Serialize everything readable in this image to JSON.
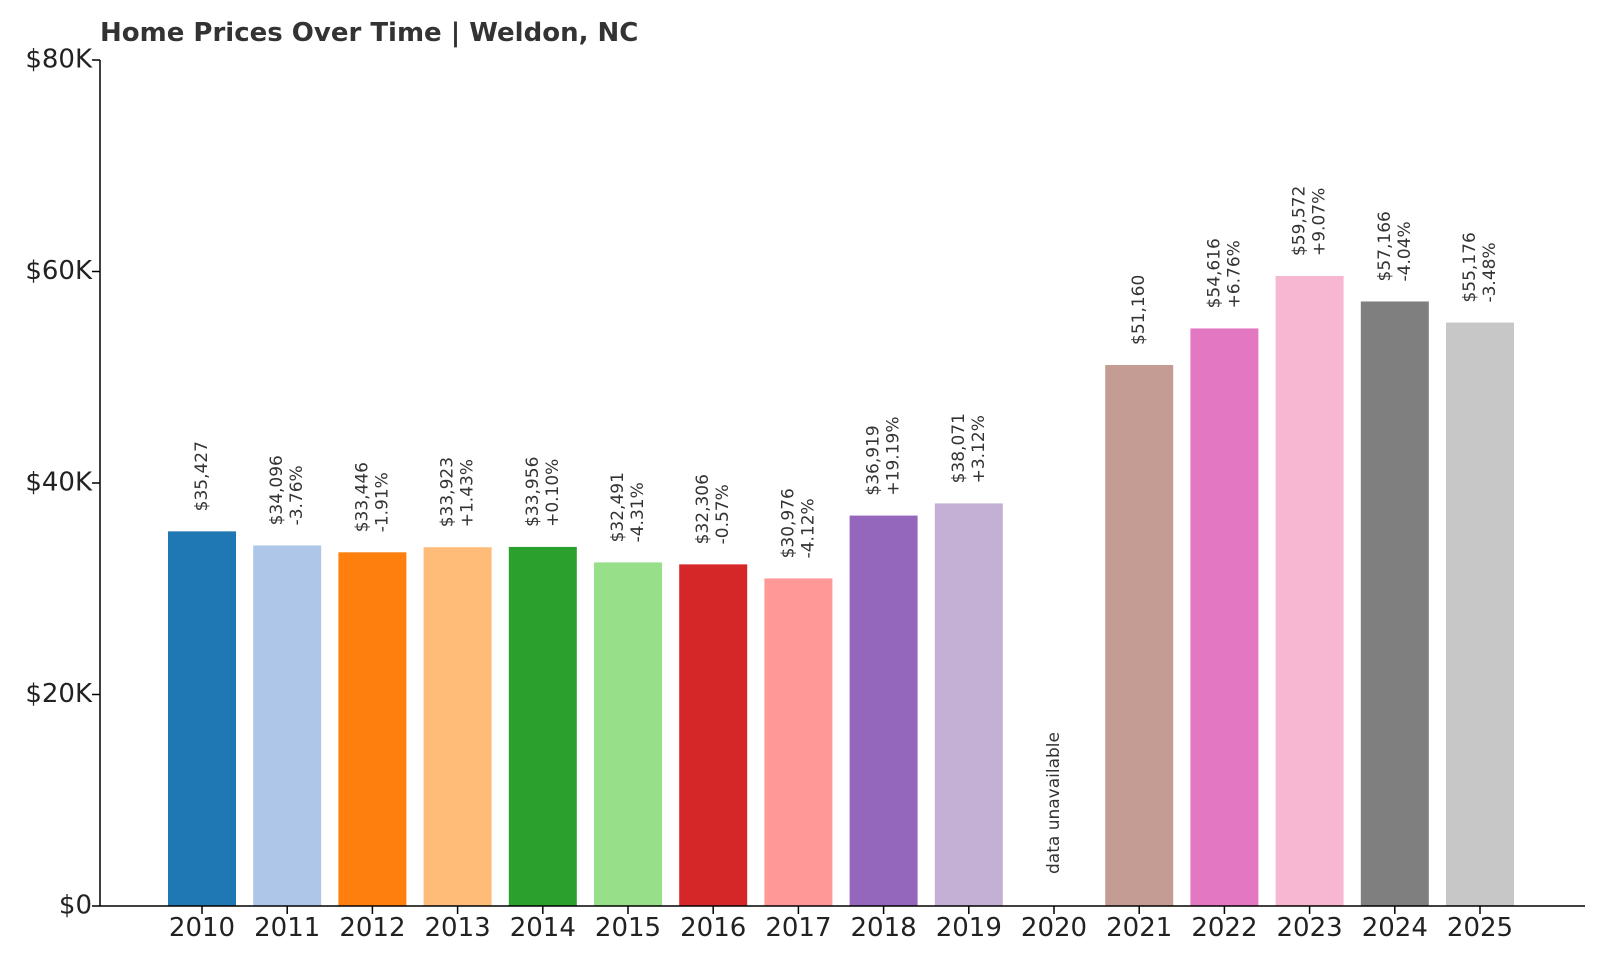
{
  "chart_data": {
    "type": "bar",
    "title": "Home Prices Over Time | Weldon, NC",
    "xlabel": "",
    "ylabel": "",
    "ylim": [
      0,
      80000
    ],
    "y_ticks": [
      0,
      20000,
      40000,
      60000,
      80000
    ],
    "y_tick_labels": [
      "$0",
      "$20K",
      "$40K",
      "$60K",
      "$80K"
    ],
    "grid": false,
    "legend": "none",
    "categories": [
      "2010",
      "2011",
      "2012",
      "2013",
      "2014",
      "2015",
      "2016",
      "2017",
      "2018",
      "2019",
      "2020",
      "2021",
      "2022",
      "2023",
      "2024",
      "2025"
    ],
    "values": [
      35427,
      34096,
      33446,
      33923,
      33956,
      32491,
      32306,
      30976,
      36919,
      38071,
      null,
      51160,
      54616,
      59572,
      57166,
      55176
    ],
    "value_labels": [
      "$35,427",
      "$34,096",
      "$33,446",
      "$33,923",
      "$33,956",
      "$32,491",
      "$32,306",
      "$30,976",
      "$36,919",
      "$38,071",
      "",
      "$51,160",
      "$54,616",
      "$59,572",
      "$57,166",
      "$55,176"
    ],
    "change_labels": [
      "",
      "-3.76%",
      "-1.91%",
      "+1.43%",
      "+0.10%",
      "-4.31%",
      "-0.57%",
      "-4.12%",
      "+19.19%",
      "+3.12%",
      "",
      "",
      "+6.76%",
      "+9.07%",
      "-4.04%",
      "-3.48%"
    ],
    "missing_label": "data unavailable",
    "colors": [
      "#1f77b4",
      "#aec7e8",
      "#ff7f0e",
      "#ffbb78",
      "#2ca02c",
      "#98df8a",
      "#d62728",
      "#ff9896",
      "#9467bd",
      "#c5b0d5",
      "#8c564b",
      "#c49c94",
      "#e377c2",
      "#f7b6d2",
      "#7f7f7f",
      "#c7c7c7"
    ]
  }
}
